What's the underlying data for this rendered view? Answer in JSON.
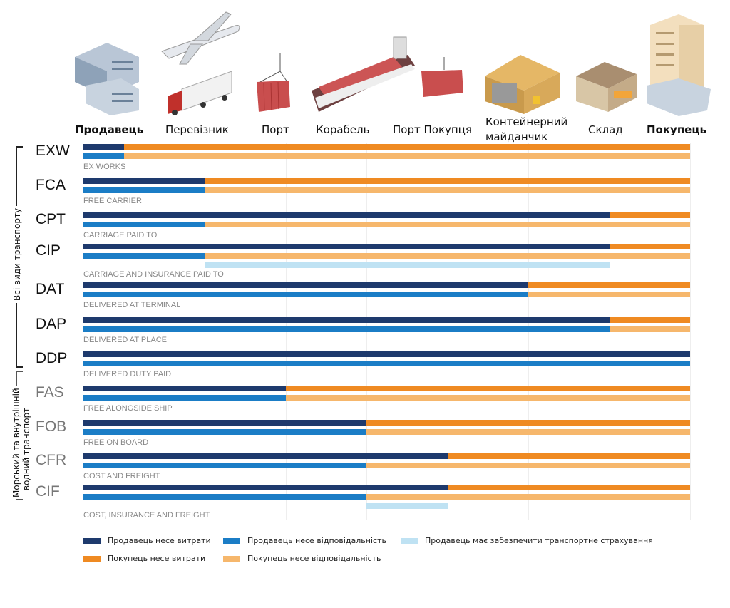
{
  "header": {
    "stages": [
      {
        "label": "Продавець",
        "bold": true
      },
      {
        "label": "Перевізник",
        "bold": false
      },
      {
        "label": "Порт",
        "bold": false
      },
      {
        "label": "Корабель",
        "bold": false
      },
      {
        "label": "Порт Покупця",
        "bold": false
      },
      {
        "label": "Контейнерний майданчик",
        "bold": false
      },
      {
        "label": "Склад",
        "bold": false
      },
      {
        "label": "Покупець",
        "bold": true
      }
    ]
  },
  "groups": {
    "all_transport": "Всі види транспорту",
    "sea_line1": "Морський та внутрішній",
    "sea_line2": "водний транспорт"
  },
  "colors": {
    "seller_cost": "#1e3a6d",
    "seller_risk": "#1b7dc6",
    "insurance": "#bfe2f3",
    "buyer_cost": "#ef8a22",
    "buyer_risk": "#f6b76c"
  },
  "scale_max": 7.5,
  "terms": [
    {
      "code": "EXW",
      "name": "EX WORKS",
      "cost": 0.5,
      "risk": 0.5,
      "sea": false
    },
    {
      "code": "FCA",
      "name": "FREE CARRIER",
      "cost": 1.5,
      "risk": 1.5,
      "sea": false
    },
    {
      "code": "CPT",
      "name": "CARRIAGE PAID TO",
      "cost": 6.5,
      "risk": 1.5,
      "sea": false
    },
    {
      "code": "CIP",
      "name": "CARRIAGE AND INSURANCE PAID TO",
      "cost": 6.5,
      "risk": 1.5,
      "insurance": [
        1.5,
        6.5
      ],
      "sea": false
    },
    {
      "code": "DAT",
      "name": "DELIVERED AT TERMINAL",
      "cost": 5.5,
      "risk": 5.5,
      "sea": false
    },
    {
      "code": "DAP",
      "name": "DELIVERED AT PLACE",
      "cost": 6.5,
      "risk": 6.5,
      "sea": false
    },
    {
      "code": "DDP",
      "name": "DELIVERED DUTY PAID",
      "cost": 7.5,
      "risk": 7.5,
      "sea": false
    },
    {
      "code": "FAS",
      "name": "FREE ALONGSIDE SHIP",
      "cost": 2.5,
      "risk": 2.5,
      "sea": true
    },
    {
      "code": "FOB",
      "name": "FREE ON BOARD",
      "cost": 3.5,
      "risk": 3.5,
      "sea": true
    },
    {
      "code": "CFR",
      "name": "COST AND FREIGHT",
      "cost": 4.5,
      "risk": 3.5,
      "sea": true
    },
    {
      "code": "CIF",
      "name": "COST, INSURANCE AND FREIGHT",
      "cost": 4.5,
      "risk": 3.5,
      "insurance": [
        3.5,
        4.5
      ],
      "sea": true
    }
  ],
  "legend": {
    "seller_cost": "Продавець несе витрати",
    "seller_risk": "Продавець несе відповідальність",
    "insurance": "Продавець має забезпечити транспортне страхування",
    "buyer_cost": "Покупець несе витрати",
    "buyer_risk": "Покупець несе відповідальність"
  }
}
